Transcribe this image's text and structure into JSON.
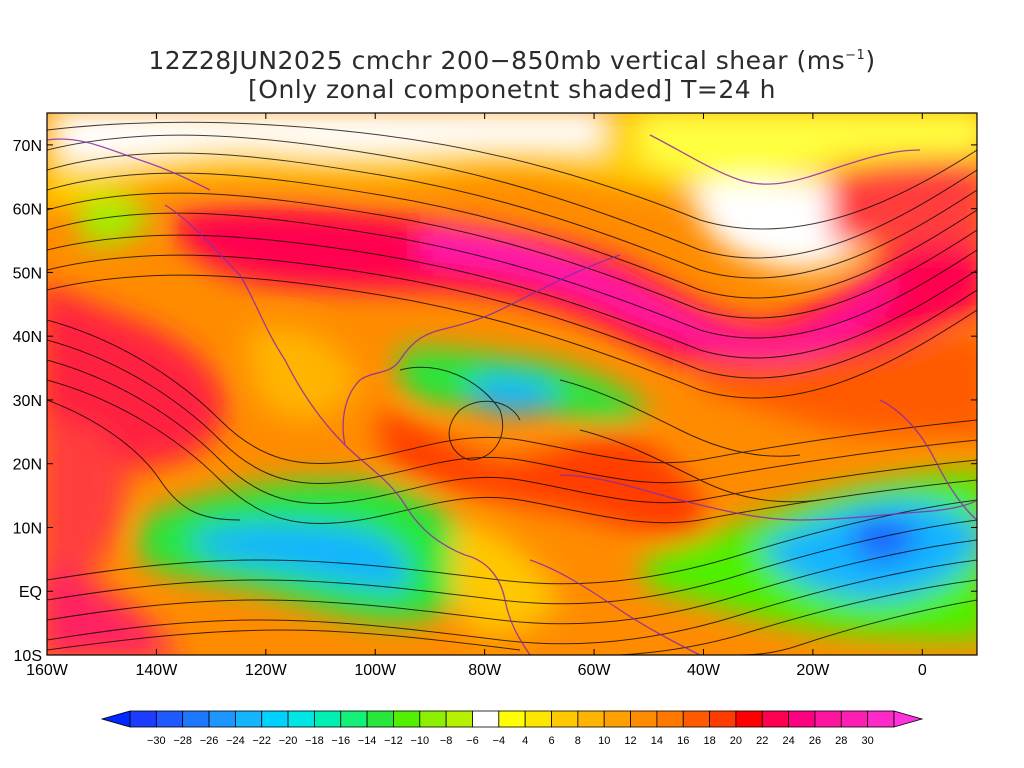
{
  "title": {
    "line1_prefix": "12Z28JUN2025 cmchr 200−850mb vertical shear (ms",
    "line1_sup": "−1",
    "line1_suffix": ")",
    "line2": "[Only zonal componetnt shaded] T=24 h"
  },
  "map": {
    "lon_range": [
      -160,
      10
    ],
    "lat_range": [
      -10,
      75
    ],
    "lat_ticks": [
      {
        "value": 70,
        "label": "70N"
      },
      {
        "value": 60,
        "label": "60N"
      },
      {
        "value": 50,
        "label": "50N"
      },
      {
        "value": 40,
        "label": "40N"
      },
      {
        "value": 30,
        "label": "30N"
      },
      {
        "value": 20,
        "label": "20N"
      },
      {
        "value": 10,
        "label": "10N"
      },
      {
        "value": 0,
        "label": "EQ"
      },
      {
        "value": -10,
        "label": "10S"
      }
    ],
    "lon_ticks": [
      {
        "value": -160,
        "label": "160W"
      },
      {
        "value": -140,
        "label": "140W"
      },
      {
        "value": -120,
        "label": "120W"
      },
      {
        "value": -100,
        "label": "100W"
      },
      {
        "value": -80,
        "label": "80W"
      },
      {
        "value": -60,
        "label": "60W"
      },
      {
        "value": -40,
        "label": "40W"
      },
      {
        "value": -20,
        "label": "20W"
      },
      {
        "value": 0,
        "label": "0"
      }
    ],
    "shading_field": "zonal component of 200-850mb vertical shear",
    "overlay": "streamlines (black) and coastlines (purple)"
  },
  "colorbar": {
    "labels": [
      "-30",
      "-28",
      "-26",
      "-24",
      "-22",
      "-20",
      "-18",
      "-16",
      "-14",
      "-12",
      "-10",
      "-8",
      "-6",
      "-4",
      "4",
      "6",
      "8",
      "10",
      "12",
      "14",
      "16",
      "18",
      "20",
      "22",
      "24",
      "26",
      "28",
      "30"
    ],
    "colors": [
      "#1e3cff",
      "#1e5aff",
      "#1e78ff",
      "#1e96ff",
      "#14b4ff",
      "#00d2ff",
      "#00e6e6",
      "#00f0b4",
      "#14f078",
      "#28e63c",
      "#50f000",
      "#8cf000",
      "#b4f000",
      "#ffffff",
      "#ffff00",
      "#ffe600",
      "#ffc800",
      "#ffb400",
      "#ffa000",
      "#ff8c00",
      "#ff7800",
      "#ff5a00",
      "#ff3c00",
      "#ff0000",
      "#ff0050",
      "#ff0082",
      "#ff14a0",
      "#ff1eb4",
      "#ff28c8"
    ]
  }
}
